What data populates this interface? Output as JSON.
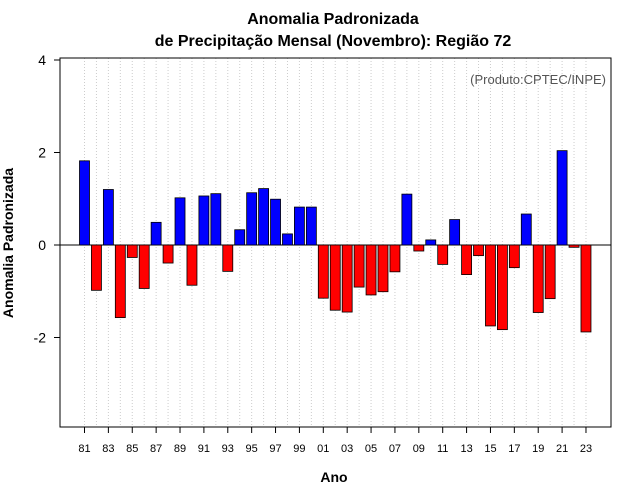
{
  "chart_data": {
    "type": "bar",
    "title": "Anomalia Padronizada",
    "subtitle": "de Precipitação Mensal (Novembro): Região 72",
    "xlabel": "Ano",
    "ylabel": "Anomalia Padronizada",
    "credit": "(Produto:CPTEC/INPE)",
    "ylim": [
      -3.9,
      4
    ],
    "yticks": [
      -2,
      0,
      2,
      4
    ],
    "ytick_labels": [
      "-2",
      "0",
      "2",
      "4"
    ],
    "categories": [
      "81",
      "82",
      "83",
      "84",
      "85",
      "86",
      "87",
      "88",
      "89",
      "90",
      "91",
      "92",
      "93",
      "94",
      "95",
      "96",
      "97",
      "98",
      "99",
      "00",
      "01",
      "02",
      "03",
      "04",
      "05",
      "06",
      "07",
      "08",
      "09",
      "10",
      "11",
      "12",
      "13",
      "14",
      "15",
      "16",
      "17",
      "18",
      "19",
      "20",
      "21",
      "22",
      "23"
    ],
    "xtick_labels": [
      "81",
      "83",
      "85",
      "87",
      "89",
      "91",
      "93",
      "95",
      "97",
      "99",
      "01",
      "03",
      "05",
      "07",
      "09",
      "11",
      "13",
      "15",
      "17",
      "19",
      "21",
      "23"
    ],
    "values": [
      1.82,
      -0.98,
      1.2,
      -1.57,
      -0.27,
      -0.94,
      0.49,
      -0.39,
      1.02,
      -0.87,
      1.06,
      1.11,
      -0.57,
      0.33,
      1.13,
      1.22,
      0.99,
      0.24,
      0.82,
      0.82,
      -1.15,
      -1.41,
      -1.45,
      -0.91,
      -1.08,
      -1.01,
      -0.58,
      1.1,
      -0.13,
      0.11,
      -0.42,
      0.55,
      -0.64,
      -0.23,
      -1.75,
      -1.83,
      -0.49,
      0.67,
      -1.46,
      -1.16,
      2.04,
      -0.05,
      -1.88
    ],
    "positive_color": "#0000ff",
    "negative_color": "#ff0000",
    "grid": true
  }
}
